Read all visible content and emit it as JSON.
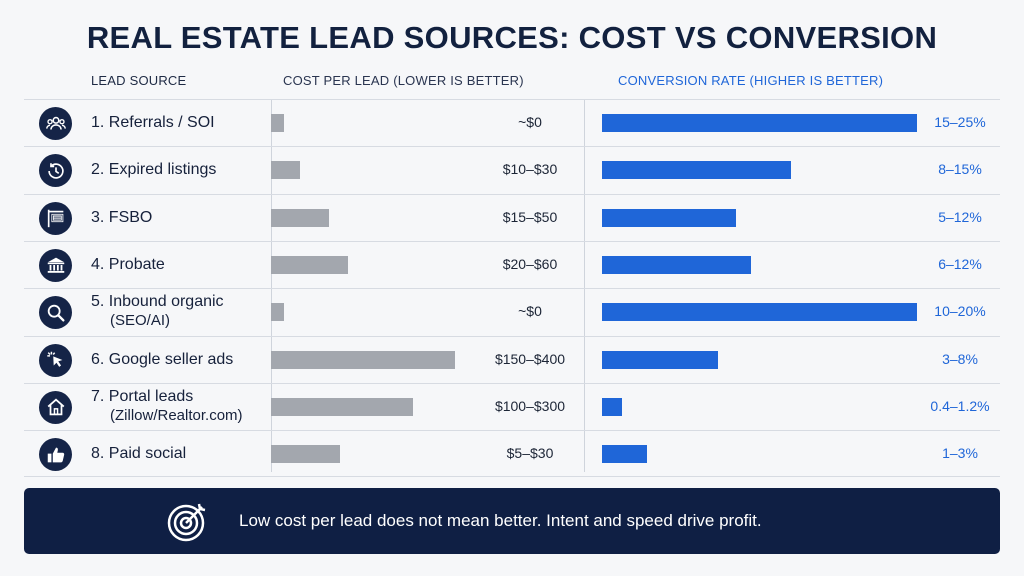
{
  "title": "REAL ESTATE LEAD SOURCES: COST VS CONVERSION",
  "headers": {
    "source": "LEAD SOURCE",
    "cost": "COST PER LEAD (LOWER IS BETTER)",
    "conversion": "CONVERSION RATE (HIGHER IS BETTER)"
  },
  "colors": {
    "cost_bar": "#a3a7ae",
    "conversion_bar": "#1f66d8",
    "icon_bg": "#152447",
    "footer_bg": "#0f1f44"
  },
  "rows": [
    {
      "label": "1. Referrals / SOI",
      "label2": "",
      "icon": "people-icon",
      "cost": "~$0",
      "conversion": "15–25%"
    },
    {
      "label": "2. Expired listings",
      "label2": "",
      "icon": "clock-history-icon",
      "cost": "$10–$30",
      "conversion": "8–15%"
    },
    {
      "label": "3. FSBO",
      "label2": "",
      "icon": "for-sale-sign-icon",
      "cost": "$15–$50",
      "conversion": "5–12%"
    },
    {
      "label": "4. Probate",
      "label2": "",
      "icon": "courthouse-icon",
      "cost": "$20–$60",
      "conversion": "6–12%"
    },
    {
      "label": "5. Inbound organic",
      "label2": "(SEO/AI)",
      "icon": "magnifier-icon",
      "cost": "~$0",
      "conversion": "10–20%"
    },
    {
      "label": "6. Google seller ads",
      "label2": "",
      "icon": "cursor-click-icon",
      "cost": "$150–$400",
      "conversion": "3–8%"
    },
    {
      "label": "7. Portal leads",
      "label2": "(Zillow/Realtor.com)",
      "icon": "house-icon",
      "cost": "$100–$300",
      "conversion": "0.4–1.2%"
    },
    {
      "label": "8. Paid social",
      "label2": "",
      "icon": "thumbs-up-icon",
      "cost": "$5–$30",
      "conversion": "1–3%"
    }
  ],
  "footer": {
    "icon": "target-icon",
    "text": "Low cost per lead does not mean better. Intent and speed drive profit."
  },
  "chart_data": {
    "type": "bar",
    "categories": [
      "1. Referrals / SOI",
      "2. Expired listings",
      "3. FSBO",
      "4. Probate",
      "5. Inbound organic (SEO/AI)",
      "6. Google seller ads",
      "7. Portal leads (Zillow/Realtor.com)",
      "8. Paid social"
    ],
    "series": [
      {
        "name": "COST PER LEAD (LOWER IS BETTER)",
        "labels": [
          "~$0",
          "$10–$30",
          "$15–$50",
          "$20–$60",
          "~$0",
          "$150–$400",
          "$100–$300",
          "$5–$30"
        ],
        "values": [
          7,
          15,
          30,
          40,
          7,
          96,
          74,
          36
        ],
        "max": 100
      },
      {
        "name": "CONVERSION RATE (HIGHER IS BETTER)",
        "labels": [
          "15–25%",
          "8–15%",
          "5–12%",
          "6–12%",
          "10–20%",
          "3–8%",
          "0.4–1.2%",
          "1–3%"
        ],
        "values": [
          25,
          15,
          10.6,
          11.8,
          25,
          9.2,
          1.6,
          3.6
        ],
        "max": 25
      }
    ],
    "title": "REAL ESTATE LEAD SOURCES: COST VS CONVERSION"
  }
}
